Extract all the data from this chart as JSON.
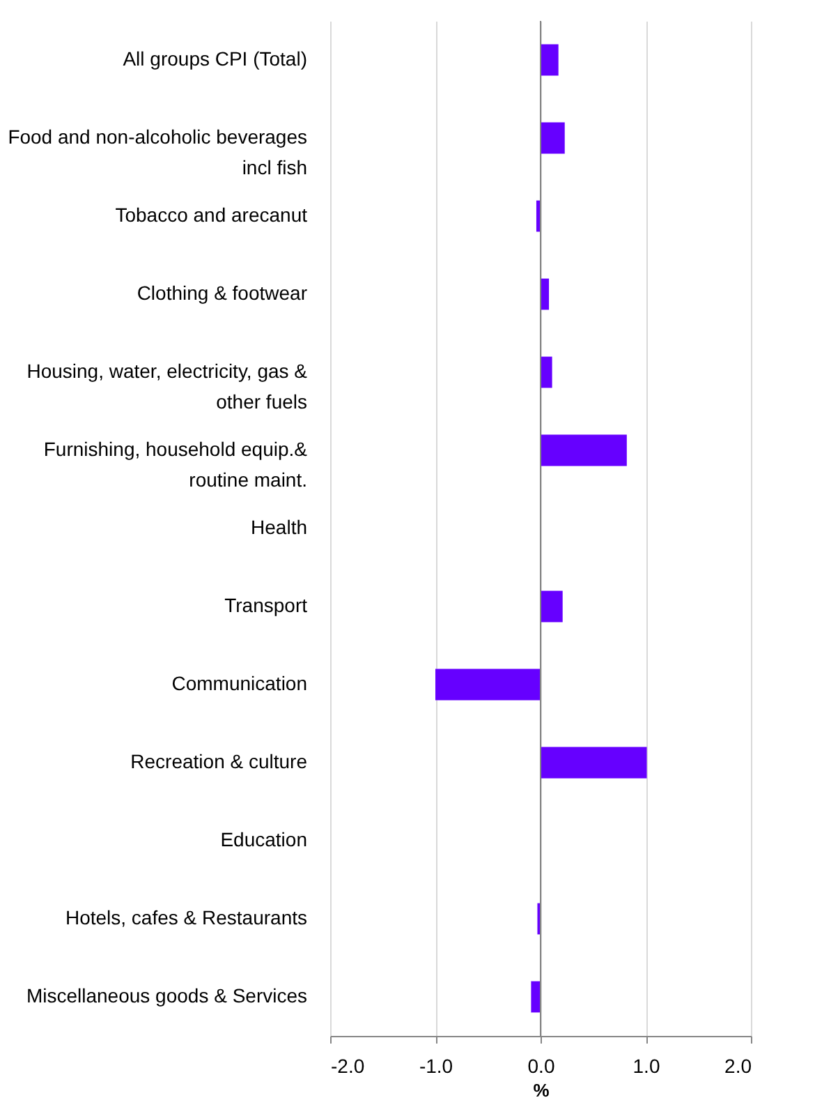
{
  "chart_data": {
    "type": "bar",
    "orientation": "horizontal",
    "xlabel": "%",
    "categories": [
      "All groups CPI (Total)",
      "Food and non-alcoholic beverages incl fish",
      "Tobacco and arecanut",
      "Clothing & footwear",
      "Housing, water, electricity, gas & other fuels",
      "Furnishing, household equip.& routine maint.",
      "Health",
      "Transport",
      "Communication",
      "Recreation & culture",
      "Education",
      "Hotels, cafes & Restaurants",
      "Miscellaneous goods & Services"
    ],
    "values": [
      0.17,
      0.23,
      -0.04,
      0.08,
      0.11,
      0.82,
      0,
      0.21,
      -1.0,
      1.01,
      0,
      -0.03,
      -0.09
    ],
    "color": "#6600ff",
    "xlim": [
      -2,
      2
    ],
    "xticks": [
      {
        "value": -2,
        "label": "-2.0"
      },
      {
        "value": -1,
        "label": "-1.0"
      },
      {
        "value": 0,
        "label": "0.0"
      },
      {
        "value": 1,
        "label": "1.0"
      },
      {
        "value": 2,
        "label": "2.0"
      }
    ],
    "grid": "x"
  }
}
